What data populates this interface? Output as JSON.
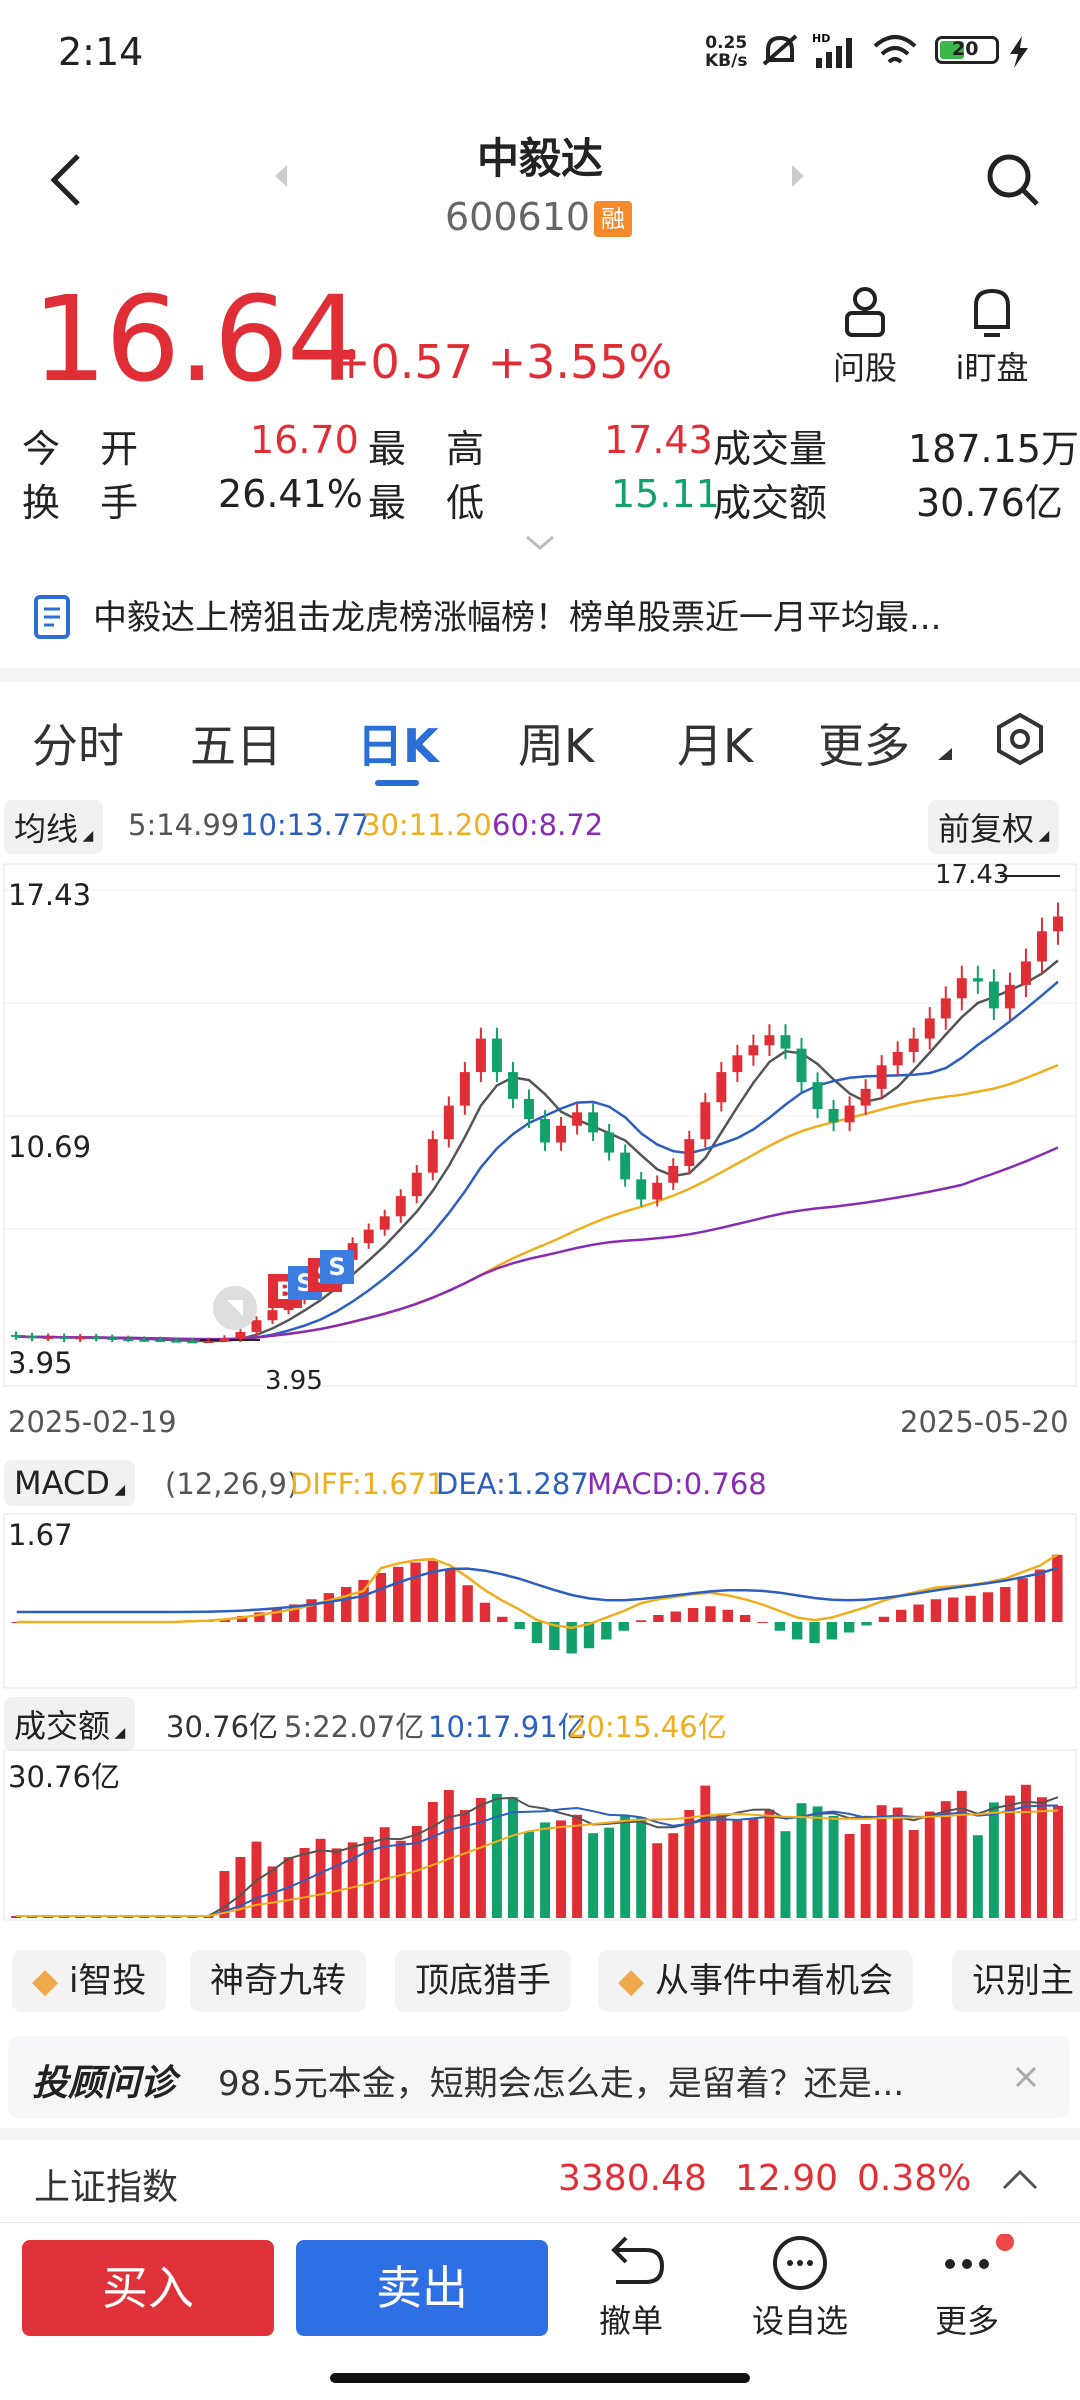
{
  "status": {
    "time": "2:14",
    "net_speed_top": "0.25",
    "net_speed_unit": "KB/s",
    "battery": "20"
  },
  "header": {
    "title": "中毅达",
    "code": "600610",
    "badge": "融",
    "ask_label": "问股",
    "watch_label": "i盯盘"
  },
  "quote": {
    "price": "16.64",
    "change": "+0.57 +3.55%",
    "open_label": "今 开",
    "open": "16.70",
    "high_label": "最 高",
    "high": "17.43",
    "volume_label": "成交量",
    "volume": "187.15万",
    "turnover_label": "换 手",
    "turnover": "26.41%",
    "low_label": "最 低",
    "low": "15.11",
    "amount_label": "成交额",
    "amount": "30.76亿"
  },
  "news": {
    "text": "中毅达上榜狙击龙虎榜涨幅榜！榜单股票近一月平均最..."
  },
  "tabs": [
    "分时",
    "五日",
    "日K",
    "周K",
    "月K",
    "更多"
  ],
  "ma": {
    "label": "均线",
    "ma5": "5:14.99",
    "ma10": "10:13.77",
    "ma30": "30:11.20",
    "ma60": "60:8.72",
    "adjust": "前复权"
  },
  "chart_labels": {
    "y_top": "17.43",
    "y_mid": "10.69",
    "y_bottom": "3.95",
    "max_marker": "17.43",
    "min_marker": "3.95",
    "date_start": "2025-02-19",
    "date_end": "2025-05-20",
    "bs_marks": [
      "B",
      "S",
      "S",
      "S"
    ]
  },
  "macd": {
    "label": "MACD",
    "params": "(12,26,9)",
    "diff": "DIFF:1.671",
    "dea": "DEA:1.287",
    "macd": "MACD:0.768",
    "y_top": "1.67"
  },
  "amount_panel": {
    "label": "成交额",
    "value": "30.76亿",
    "ma5": "5:22.07亿",
    "ma10": "10:17.91亿",
    "ma20": "20:15.46亿",
    "y_top": "30.76亿"
  },
  "chips": [
    "i智投",
    "神奇九转",
    "顶底猎手",
    "从事件中看机会",
    "识别主"
  ],
  "advisor": {
    "brand": "投顾问诊",
    "text": "98.5元本金，短期会怎么走，是留着？还是..."
  },
  "index": {
    "name": "上证指数",
    "value": "3380.48",
    "change": "12.90",
    "pct": "0.38%"
  },
  "bottom": {
    "buy": "买入",
    "sell": "卖出",
    "cancel": "撤单",
    "watchlist": "设自选",
    "more": "更多"
  },
  "colors": {
    "up": "#e02e36",
    "down": "#12a16b",
    "accent": "#2b6fd6",
    "ma5": "#555555",
    "ma10": "#2b5fc0",
    "ma30": "#f0ad1c",
    "ma60": "#8a2bb5"
  },
  "chart_data": [
    {
      "type": "candlestick",
      "title": "",
      "x_range": [
        "2025-02-19",
        "2025-05-20"
      ],
      "ylim": [
        3.95,
        17.43
      ],
      "closes": [
        4.12,
        4.08,
        4.1,
        4.05,
        4.09,
        4.07,
        4.04,
        4.02,
        4.01,
        3.99,
        3.97,
        3.95,
        3.98,
        4.05,
        4.25,
        4.6,
        4.9,
        5.2,
        5.5,
        5.8,
        6.4,
        6.9,
        7.3,
        7.7,
        8.3,
        9.0,
        10.0,
        11.0,
        12.0,
        13.0,
        12.0,
        11.2,
        10.6,
        9.9,
        10.4,
        10.8,
        10.2,
        9.6,
        8.8,
        8.2,
        8.7,
        9.2,
        10.0,
        11.1,
        12.0,
        12.5,
        12.8,
        13.1,
        12.7,
        11.7,
        10.9,
        10.5,
        11.0,
        11.5,
        12.2,
        12.6,
        13.0,
        13.6,
        14.2,
        14.8,
        14.7,
        13.9,
        14.6,
        15.3,
        16.2,
        16.64
      ],
      "ma_lines": [
        "MA5",
        "MA10",
        "MA30",
        "MA60"
      ]
    },
    {
      "type": "bar",
      "title": "",
      "series": [
        {
          "name": "DIFF"
        },
        {
          "name": "DEA"
        },
        {
          "name": "MACD"
        }
      ],
      "y_top": 1.67,
      "macd_values": [
        0,
        0,
        0,
        0,
        0,
        0,
        0,
        0,
        0,
        0,
        0.01,
        0.02,
        0.04,
        0.07,
        0.11,
        0.15,
        0.2,
        0.26,
        0.33,
        0.4,
        0.48,
        0.56,
        0.63,
        0.68,
        0.7,
        0.6,
        0.42,
        0.22,
        0.06,
        -0.08,
        -0.24,
        -0.32,
        -0.36,
        -0.3,
        -0.2,
        -0.1,
        0.02,
        0.08,
        0.12,
        0.16,
        0.18,
        0.14,
        0.08,
        0.0,
        -0.1,
        -0.2,
        -0.24,
        -0.2,
        -0.12,
        -0.04,
        0.06,
        0.14,
        0.2,
        0.26,
        0.28,
        0.3,
        0.34,
        0.4,
        0.5,
        0.6,
        0.768
      ]
    },
    {
      "type": "bar",
      "title": "",
      "series": [
        {
          "name": "成交额"
        }
      ],
      "y_top": 30.76
    }
  ]
}
